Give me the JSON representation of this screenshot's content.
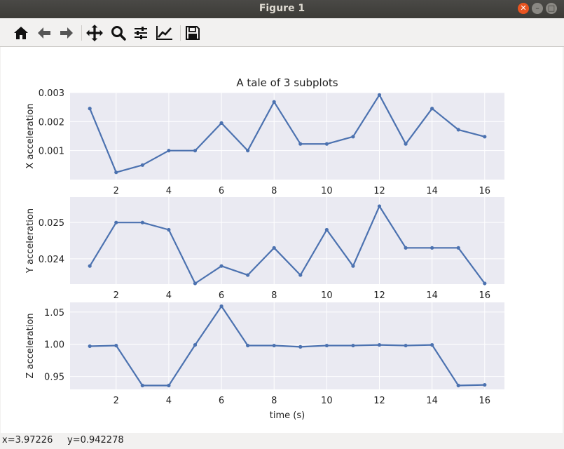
{
  "window": {
    "title": "Figure 1"
  },
  "toolbar": {
    "buttons": [
      {
        "name": "home-button",
        "icon": "home-icon"
      },
      {
        "name": "back-button",
        "icon": "arrow-left-icon"
      },
      {
        "name": "forward-button",
        "icon": "arrow-right-icon"
      },
      {
        "name": "pan-button",
        "icon": "move-icon"
      },
      {
        "name": "zoom-button",
        "icon": "magnifier-icon"
      },
      {
        "name": "configure-subplots-button",
        "icon": "sliders-icon"
      },
      {
        "name": "edit-axes-button",
        "icon": "line-chart-icon"
      },
      {
        "name": "save-button",
        "icon": "floppy-disk-icon"
      }
    ]
  },
  "status": {
    "text": "x=3.97226     y=0.942278"
  },
  "chart_data": [
    {
      "type": "line",
      "title": "A tale of 3 subplots",
      "xlabel": "",
      "ylabel": "X acceleration",
      "x": [
        1,
        2,
        3,
        4,
        5,
        6,
        7,
        8,
        9,
        10,
        11,
        12,
        13,
        14,
        15,
        16
      ],
      "values": [
        0.00245,
        0.00025,
        0.0005,
        0.001,
        0.001,
        0.00195,
        0.001,
        0.00268,
        0.00123,
        0.00123,
        0.00148,
        0.00292,
        0.00123,
        0.00245,
        0.00172,
        0.00148
      ],
      "xlim": [
        0.25,
        16.75
      ],
      "ylim": [
        0,
        0.003
      ],
      "xticks": [
        2,
        4,
        6,
        8,
        10,
        12,
        14,
        16
      ],
      "xtick_labels": [
        "2",
        "4",
        "6",
        "8",
        "10",
        "12",
        "14",
        "16"
      ],
      "yticks": [
        0.001,
        0.002,
        0.003
      ],
      "ytick_labels": [
        "0.001",
        "0.002",
        "0.003"
      ],
      "grid": true,
      "color": "#4c72b0"
    },
    {
      "type": "line",
      "title": "",
      "xlabel": "",
      "ylabel": "Y acceleration",
      "x": [
        1,
        2,
        3,
        4,
        5,
        6,
        7,
        8,
        9,
        10,
        11,
        12,
        13,
        14,
        15,
        16
      ],
      "values": [
        0.0238,
        0.025,
        0.025,
        0.0248,
        0.02332,
        0.0238,
        0.02355,
        0.0243,
        0.02355,
        0.0248,
        0.0238,
        0.02545,
        0.0243,
        0.0243,
        0.0243,
        0.02332
      ],
      "xlim": [
        0.25,
        16.75
      ],
      "ylim": [
        0.0233,
        0.0257
      ],
      "xticks": [
        2,
        4,
        6,
        8,
        10,
        12,
        14,
        16
      ],
      "xtick_labels": [
        "2",
        "4",
        "6",
        "8",
        "10",
        "12",
        "14",
        "16"
      ],
      "yticks": [
        0.024,
        0.025
      ],
      "ytick_labels": [
        "0.024",
        "0.025"
      ],
      "grid": true,
      "color": "#4c72b0"
    },
    {
      "type": "line",
      "title": "",
      "xlabel": "time (s)",
      "ylabel": "Z acceleration",
      "x": [
        1,
        2,
        3,
        4,
        5,
        6,
        7,
        8,
        9,
        10,
        11,
        12,
        13,
        14,
        15,
        16
      ],
      "values": [
        0.997,
        0.998,
        0.936,
        0.936,
        0.999,
        1.059,
        0.998,
        0.998,
        0.996,
        0.998,
        0.998,
        0.999,
        0.998,
        0.999,
        0.936,
        0.937
      ],
      "xlim": [
        0.25,
        16.75
      ],
      "ylim": [
        0.93,
        1.065
      ],
      "xticks": [
        2,
        4,
        6,
        8,
        10,
        12,
        14,
        16
      ],
      "xtick_labels": [
        "2",
        "4",
        "6",
        "8",
        "10",
        "12",
        "14",
        "16"
      ],
      "yticks": [
        0.95,
        1.0,
        1.05
      ],
      "ytick_labels": [
        "0.95",
        "1.00",
        "1.05"
      ],
      "grid": true,
      "color": "#4c72b0"
    }
  ]
}
